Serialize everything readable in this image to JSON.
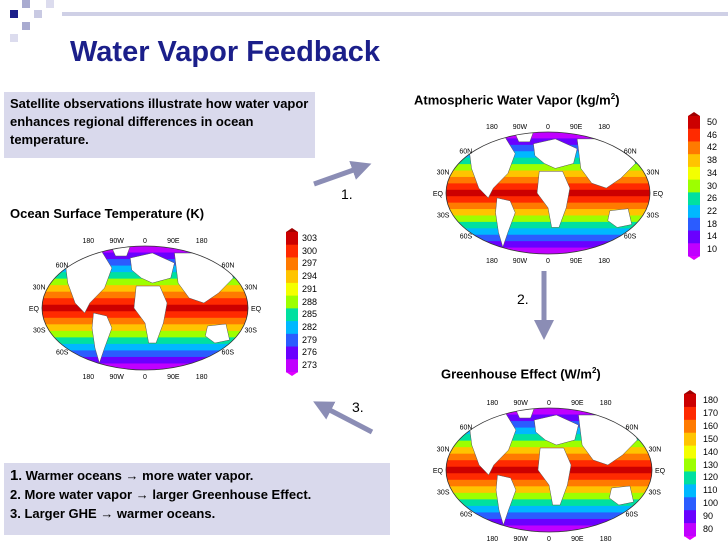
{
  "title": "Water Vapor Feedback",
  "intro_text": "Satellite observations illustrate how water vapor enhances regional differences in ocean temperature.",
  "panels": {
    "ocean": {
      "label": "Ocean Surface Temperature (K)",
      "ticks": [
        "303",
        "300",
        "297",
        "294",
        "291",
        "288",
        "285",
        "282",
        "279",
        "276",
        "273"
      ],
      "lon": [
        "180",
        "90W",
        "0",
        "90E",
        "180"
      ],
      "lat": [
        "60N",
        "30N",
        "EQ",
        "30S",
        "60S"
      ]
    },
    "vapor": {
      "label": "Atmospheric Water Vapor (kg/m",
      "label_sup": "2",
      "label_end": ")",
      "ticks": [
        "50",
        "46",
        "42",
        "38",
        "34",
        "30",
        "26",
        "22",
        "18",
        "14",
        "10"
      ],
      "lon": [
        "180",
        "90W",
        "0",
        "90E",
        "180"
      ],
      "lat": [
        "60N",
        "30N",
        "EQ",
        "30S",
        "60S"
      ]
    },
    "ghe": {
      "label": "Greenhouse Effect (W/m",
      "label_sup": "2",
      "label_end": ")",
      "ticks": [
        "180",
        "170",
        "160",
        "150",
        "140",
        "130",
        "120",
        "110",
        "100",
        "90",
        "80"
      ],
      "lon": [
        "180",
        "90W",
        "0",
        "90E",
        "180"
      ],
      "lat": [
        "60N",
        "30N",
        "EQ",
        "30S",
        "60S"
      ]
    }
  },
  "steps": {
    "one": "1.",
    "two": "2.",
    "three": "3."
  },
  "summary": {
    "line1_a": "1",
    "line1_b": ". Warmer oceans ",
    "line1_c": " more water vapor.",
    "line2_a": "2. More water vapor ",
    "line2_b": " larger Greenhouse Effect.",
    "line3_a": "3. Larger GHE ",
    "line3_b": " warmer oceans.",
    "arrow": "→"
  },
  "colors": {
    "title": "#1b1f8a",
    "box": "#d9d9ec",
    "arrow": "#8b8db5"
  }
}
